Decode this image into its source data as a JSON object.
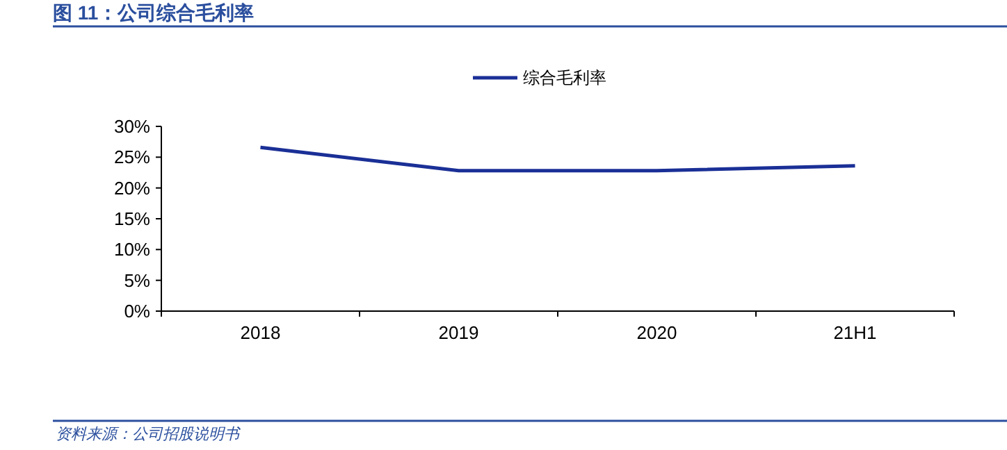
{
  "chart_data": {
    "type": "line",
    "title": "图 11：公司综合毛利率",
    "categories": [
      "2018",
      "2019",
      "2020",
      "21H1"
    ],
    "series": [
      {
        "name": "综合毛利率",
        "color": "#1a2f96",
        "values": [
          26.6,
          22.8,
          22.8,
          23.6
        ]
      }
    ],
    "ylim": [
      0,
      30
    ],
    "yticks": [
      {
        "value": 0,
        "label": "0%"
      },
      {
        "value": 5,
        "label": "5%"
      },
      {
        "value": 10,
        "label": "10%"
      },
      {
        "value": 15,
        "label": "15%"
      },
      {
        "value": 20,
        "label": "20%"
      },
      {
        "value": 25,
        "label": "25%"
      },
      {
        "value": 30,
        "label": "30%"
      }
    ],
    "grid": false,
    "legend": "top",
    "marker": "none",
    "line_style": "solid",
    "annotations": [
      "资料来源：公司招股说明书"
    ]
  }
}
